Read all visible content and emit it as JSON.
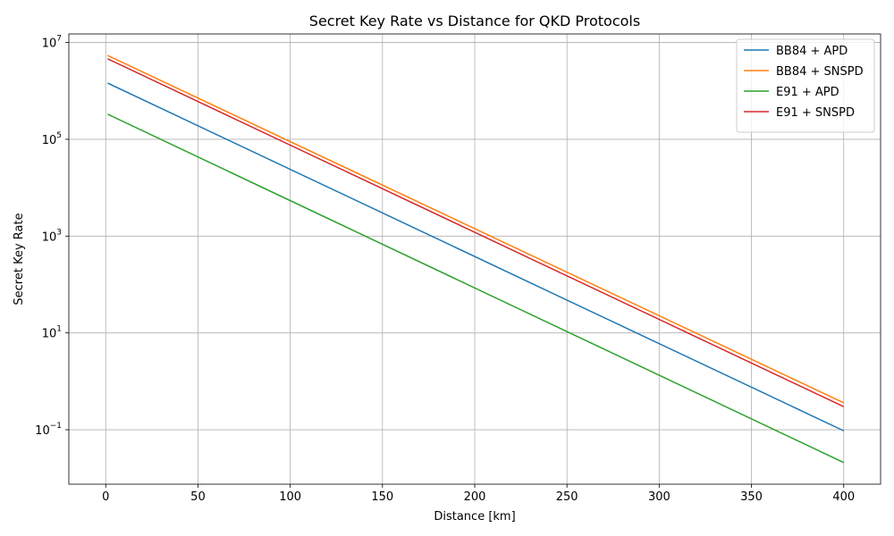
{
  "chart_data": {
    "type": "line",
    "title": "Secret Key Rate vs Distance for QKD Protocols",
    "xlabel": "Distance [km]",
    "ylabel": "Secret Key Rate",
    "xlim": [
      -20,
      420
    ],
    "ylim": [
      0.0075,
      15000000
    ],
    "yscale": "log",
    "grid": true,
    "legend_position": "top-right",
    "x_ticks": [
      0,
      50,
      100,
      150,
      200,
      250,
      300,
      350,
      400
    ],
    "y_ticks": [
      {
        "value": 0.1,
        "base": "10",
        "exp": "−1"
      },
      {
        "value": 10,
        "base": "10",
        "exp": "1"
      },
      {
        "value": 1000,
        "base": "10",
        "exp": "3"
      },
      {
        "value": 100000,
        "base": "10",
        "exp": "5"
      },
      {
        "value": 10000000,
        "base": "10",
        "exp": "7"
      }
    ],
    "series": [
      {
        "name": "BB84 + APD",
        "color": "#1f77b4",
        "x": [
          1,
          400
        ],
        "y": [
          1450000,
          0.095
        ]
      },
      {
        "name": "BB84 + SNSPD",
        "color": "#ff7f0e",
        "x": [
          1,
          400
        ],
        "y": [
          5400000,
          0.36
        ]
      },
      {
        "name": "E91 + APD",
        "color": "#2ca02c",
        "x": [
          1,
          400
        ],
        "y": [
          330000,
          0.021
        ]
      },
      {
        "name": "E91 + SNSPD",
        "color": "#d62728",
        "x": [
          1,
          400
        ],
        "y": [
          4600000,
          0.3
        ]
      }
    ]
  }
}
